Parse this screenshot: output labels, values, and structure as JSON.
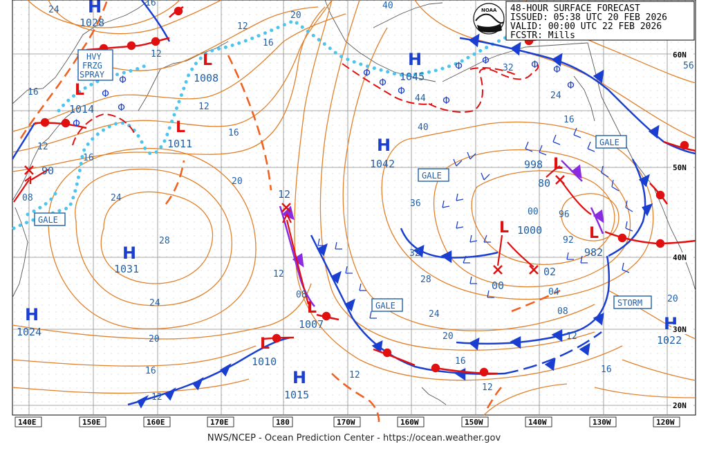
{
  "header": {
    "title": "48-HOUR SURFACE FORECAST",
    "issued": "ISSUED: 05:38 UTC 20 FEB 2026",
    "valid": "VALID:  00:00 UTC 22 FEB 2026",
    "forecaster": "FCSTR:  Mills",
    "logo_text": "NOAA"
  },
  "footer": {
    "credit": "NWS/NCEP - Ocean Prediction Center - https://ocean.weather.gov"
  },
  "longitude_labels": [
    "140E",
    "150E",
    "160E",
    "170E",
    "180",
    "170W",
    "160W",
    "150W",
    "140W",
    "130W",
    "120W"
  ],
  "latitude_labels": [
    "60N",
    "50N",
    "40N",
    "30N",
    "20N"
  ],
  "highs": [
    {
      "symbol": "H",
      "value": "1028"
    },
    {
      "symbol": "H",
      "value": "1045"
    },
    {
      "symbol": "H",
      "value": "1042"
    },
    {
      "symbol": "H",
      "value": "1031"
    },
    {
      "symbol": "H",
      "value": "1024"
    },
    {
      "symbol": "H",
      "value": "1015"
    },
    {
      "symbol": "H",
      "value": "1022"
    }
  ],
  "lows": [
    {
      "symbol": "L",
      "value": "1014"
    },
    {
      "symbol": "L",
      "value": "1008"
    },
    {
      "symbol": "L",
      "value": "1011"
    },
    {
      "symbol": "L",
      "value": "1007"
    },
    {
      "symbol": "L",
      "value": "1010"
    },
    {
      "symbol": "L",
      "value": "1000"
    },
    {
      "symbol": "L",
      "value": "998"
    },
    {
      "symbol": "L",
      "value": "982"
    }
  ],
  "future_low_values": [
    "90",
    "12",
    "80",
    "00",
    "02"
  ],
  "warnings": [
    "GALE",
    "GALE",
    "GALE",
    "GALE",
    "STORM"
  ],
  "spray_warning": [
    "HVY",
    "FRZG",
    "SPRAY"
  ],
  "isobar_labels": [
    "24",
    "16",
    "20",
    "12",
    "40",
    "16",
    "12",
    "16",
    "12",
    "16",
    "12",
    "16",
    "32",
    "44",
    "40",
    "56",
    "24",
    "16",
    "20",
    "24",
    "08",
    "28",
    "24",
    "20",
    "16",
    "12",
    "36",
    "32",
    "28",
    "24",
    "20",
    "16",
    "12",
    "00",
    "96",
    "92",
    "04",
    "08",
    "12",
    "16",
    "20",
    "12",
    "08",
    "12"
  ],
  "colors": {
    "isobar": "#e0802a",
    "high": "#1a3fd0",
    "low": "#e01010",
    "cold_front": "#1a3fd0",
    "warm_front": "#e01010",
    "ice_edge": "#4cc4ec",
    "occluded": "#8a2be2",
    "trough": "#f06020",
    "grid": "#8a8a8a",
    "text": "#1f5fa8"
  }
}
